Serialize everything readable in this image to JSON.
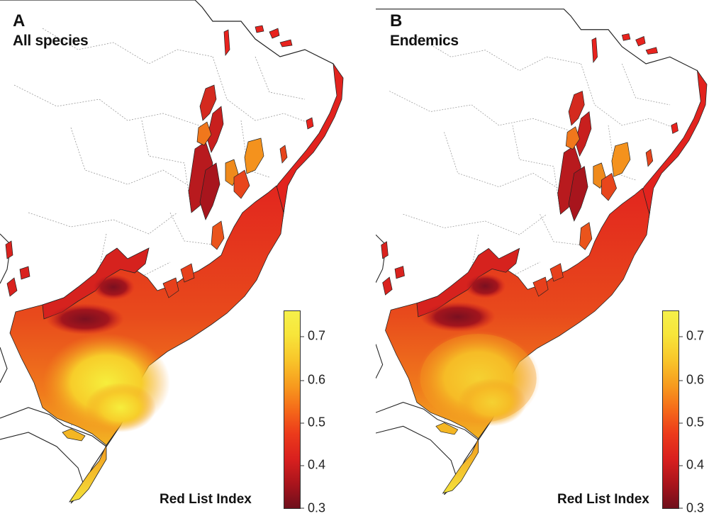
{
  "panels": [
    {
      "letter": "A",
      "title": "All species"
    },
    {
      "letter": "B",
      "title": "Endemics"
    }
  ],
  "legend": {
    "label": "Red List Index",
    "ticks": [
      "0.7",
      "0.6",
      "0.5",
      "0.4",
      "0.3"
    ],
    "range": [
      0.3,
      0.75
    ],
    "colors": [
      "#6e0f1c",
      "#d9201e",
      "#f56a19",
      "#f8c52a",
      "#f6f04a"
    ]
  }
}
